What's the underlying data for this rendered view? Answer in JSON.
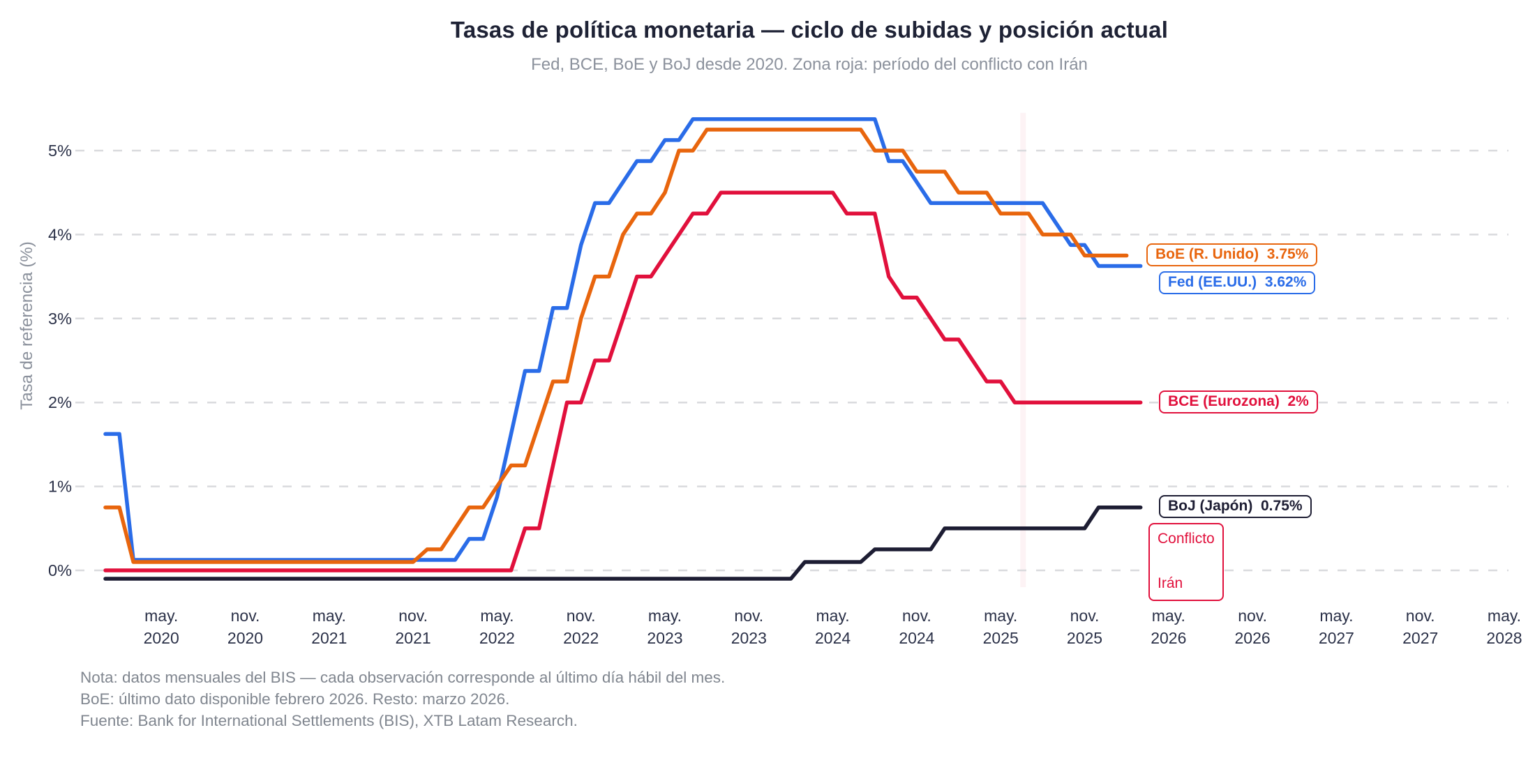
{
  "header": {
    "title": "Tasas de política monetaria — ciclo de subidas y posición actual",
    "subtitle": "Fed, BCE, BoE y BoJ desde 2020. Zona roja: período del conflicto con Irán"
  },
  "footer": {
    "line1": "Nota: datos mensuales del BIS — cada observación corresponde al último día hábil del mes.",
    "line2": "BoE: último dato disponible febrero 2026. Resto: marzo 2026.",
    "line3": "Fuente: Bank for International Settlements (BIS), XTB Latam Research."
  },
  "chart_data": {
    "type": "line",
    "title": "Tasas de política monetaria — ciclo de subidas y posición actual",
    "xlabel": "",
    "ylabel": "Tasa de referencia (%)",
    "x_start_month": "2020-01",
    "x_frequency": "monthly",
    "ylim": [
      -0.35,
      5.6
    ],
    "grid": "horizontal-dashed",
    "grid_color": "#d9dadd",
    "tick_color": "#2b3148",
    "muted_color": "#8b919c",
    "y_ticks": [
      {
        "label": "0%",
        "value": 0
      },
      {
        "label": "1%",
        "value": 1
      },
      {
        "label": "2%",
        "value": 2
      },
      {
        "label": "3%",
        "value": 3
      },
      {
        "label": "4%",
        "value": 4
      },
      {
        "label": "5%",
        "value": 5
      }
    ],
    "x_ticks": [
      {
        "month": "may.",
        "year": "2020",
        "i": 4
      },
      {
        "month": "nov.",
        "year": "2020",
        "i": 10
      },
      {
        "month": "may.",
        "year": "2021",
        "i": 16
      },
      {
        "month": "nov.",
        "year": "2021",
        "i": 22
      },
      {
        "month": "may.",
        "year": "2022",
        "i": 28
      },
      {
        "month": "nov.",
        "year": "2022",
        "i": 34
      },
      {
        "month": "may.",
        "year": "2023",
        "i": 40
      },
      {
        "month": "nov.",
        "year": "2023",
        "i": 46
      },
      {
        "month": "may.",
        "year": "2024",
        "i": 52
      },
      {
        "month": "nov.",
        "year": "2024",
        "i": 58
      },
      {
        "month": "may.",
        "year": "2025",
        "i": 64
      },
      {
        "month": "nov.",
        "year": "2025",
        "i": 70
      },
      {
        "month": "may.",
        "year": "2026",
        "i": 76
      },
      {
        "month": "nov.",
        "year": "2026",
        "i": 82
      },
      {
        "month": "may.",
        "year": "2027",
        "i": 88
      },
      {
        "month": "nov.",
        "year": "2027",
        "i": 94
      },
      {
        "month": "may.",
        "year": "2028",
        "i": 100
      }
    ],
    "series": [
      {
        "name": "Fed (EE.UU.)",
        "end_label": "Fed (EE.UU.)  3.62%",
        "last_value": 3.62,
        "color": "#2a6ce8",
        "values": [
          1.625,
          1.625,
          0.125,
          0.125,
          0.125,
          0.125,
          0.125,
          0.125,
          0.125,
          0.125,
          0.125,
          0.125,
          0.125,
          0.125,
          0.125,
          0.125,
          0.125,
          0.125,
          0.125,
          0.125,
          0.125,
          0.125,
          0.125,
          0.125,
          0.125,
          0.125,
          0.375,
          0.375,
          0.875,
          1.625,
          2.375,
          2.375,
          3.125,
          3.125,
          3.875,
          4.375,
          4.375,
          4.625,
          4.875,
          4.875,
          5.125,
          5.125,
          5.375,
          5.375,
          5.375,
          5.375,
          5.375,
          5.375,
          5.375,
          5.375,
          5.375,
          5.375,
          5.375,
          5.375,
          5.375,
          5.375,
          4.875,
          4.875,
          4.625,
          4.375,
          4.375,
          4.375,
          4.375,
          4.375,
          4.375,
          4.375,
          4.375,
          4.375,
          4.125,
          3.875,
          3.875,
          3.625,
          3.625,
          3.625,
          3.625
        ]
      },
      {
        "name": "BoE (R. Unido)",
        "end_label": "BoE (R. Unido)  3.75%",
        "last_value": 3.75,
        "color": "#e8650d",
        "values": [
          0.75,
          0.75,
          0.1,
          0.1,
          0.1,
          0.1,
          0.1,
          0.1,
          0.1,
          0.1,
          0.1,
          0.1,
          0.1,
          0.1,
          0.1,
          0.1,
          0.1,
          0.1,
          0.1,
          0.1,
          0.1,
          0.1,
          0.1,
          0.25,
          0.25,
          0.5,
          0.75,
          0.75,
          1.0,
          1.25,
          1.25,
          1.75,
          2.25,
          2.25,
          3.0,
          3.5,
          3.5,
          4.0,
          4.25,
          4.25,
          4.5,
          5.0,
          5.0,
          5.25,
          5.25,
          5.25,
          5.25,
          5.25,
          5.25,
          5.25,
          5.25,
          5.25,
          5.25,
          5.25,
          5.25,
          5.0,
          5.0,
          5.0,
          4.75,
          4.75,
          4.75,
          4.5,
          4.5,
          4.5,
          4.25,
          4.25,
          4.25,
          4.0,
          4.0,
          4.0,
          3.75,
          3.75,
          3.75,
          3.75
        ]
      },
      {
        "name": "BCE (Eurozona)",
        "end_label": "BCE (Eurozona)  2%",
        "last_value": 2,
        "color": "#e1103c",
        "values": [
          0,
          0,
          0,
          0,
          0,
          0,
          0,
          0,
          0,
          0,
          0,
          0,
          0,
          0,
          0,
          0,
          0,
          0,
          0,
          0,
          0,
          0,
          0,
          0,
          0,
          0,
          0,
          0,
          0,
          0,
          0.5,
          0.5,
          1.25,
          2.0,
          2.0,
          2.5,
          2.5,
          3.0,
          3.5,
          3.5,
          3.75,
          4.0,
          4.25,
          4.25,
          4.5,
          4.5,
          4.5,
          4.5,
          4.5,
          4.5,
          4.5,
          4.5,
          4.5,
          4.25,
          4.25,
          4.25,
          3.5,
          3.25,
          3.25,
          3.0,
          2.75,
          2.75,
          2.5,
          2.25,
          2.25,
          2.0,
          2.0,
          2.0,
          2.0,
          2.0,
          2.0,
          2.0,
          2.0,
          2.0,
          2.0
        ]
      },
      {
        "name": "BoJ (Japón)",
        "end_label": "BoJ (Japón)  0.75%",
        "last_value": 0.75,
        "color": "#1d1d33",
        "values": [
          -0.1,
          -0.1,
          -0.1,
          -0.1,
          -0.1,
          -0.1,
          -0.1,
          -0.1,
          -0.1,
          -0.1,
          -0.1,
          -0.1,
          -0.1,
          -0.1,
          -0.1,
          -0.1,
          -0.1,
          -0.1,
          -0.1,
          -0.1,
          -0.1,
          -0.1,
          -0.1,
          -0.1,
          -0.1,
          -0.1,
          -0.1,
          -0.1,
          -0.1,
          -0.1,
          -0.1,
          -0.1,
          -0.1,
          -0.1,
          -0.1,
          -0.1,
          -0.1,
          -0.1,
          -0.1,
          -0.1,
          -0.1,
          -0.1,
          -0.1,
          -0.1,
          -0.1,
          -0.1,
          -0.1,
          -0.1,
          -0.1,
          -0.1,
          0.1,
          0.1,
          0.1,
          0.1,
          0.1,
          0.25,
          0.25,
          0.25,
          0.25,
          0.25,
          0.5,
          0.5,
          0.5,
          0.5,
          0.5,
          0.5,
          0.5,
          0.5,
          0.5,
          0.5,
          0.5,
          0.75,
          0.75,
          0.75,
          0.75
        ]
      }
    ],
    "annotation": {
      "line1": "Conflicto",
      "line2": "Irán",
      "color": "#e1103c",
      "band_month_range": [
        65.4,
        65.8
      ],
      "band_fill": "rgba(225,16,60,0.05)"
    }
  }
}
